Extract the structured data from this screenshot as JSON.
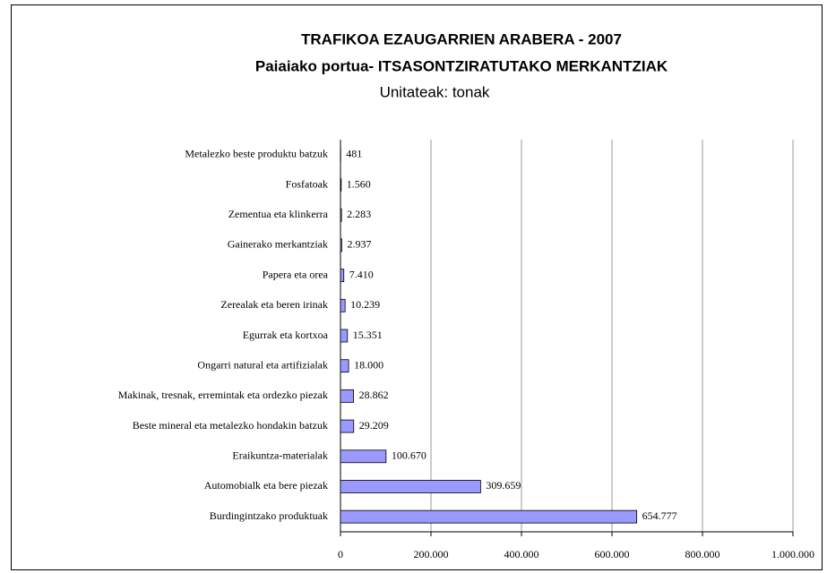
{
  "chart_data": {
    "type": "bar",
    "orientation": "horizontal",
    "title": "TRAFIKOA EZAUGARRIEN ARABERA - 2007",
    "subtitle": "Paiaiako portua- ITSASONTZIRATUTAKO MERKANTZIAK",
    "units": "Unitateak: tonak",
    "categories": [
      "Metalezko beste produktu batzuk",
      "Fosfatoak",
      "Zementua eta klinkerra",
      "Gainerako merkantziak",
      "Papera eta orea",
      "Zerealak eta beren irinak",
      "Egurrak eta kortxoa",
      "Ongarri natural eta artifizialak",
      "Makinak, tresnak, erremintak eta ordezko piezak",
      "Beste mineral eta metalezko hondakin batzuk",
      "Eraikuntza-materialak",
      "Automobialk eta bere piezak",
      "Burdingintzako produktuak"
    ],
    "values": [
      481,
      1560,
      2283,
      2937,
      7410,
      10239,
      15351,
      18000,
      28862,
      29209,
      100670,
      309659,
      654777
    ],
    "value_labels": [
      "481",
      "1.560",
      "2.283",
      "2.937",
      "7.410",
      "10.239",
      "15.351",
      "18.000",
      "28.862",
      "29.209",
      "100.670",
      "309.659",
      "654.777"
    ],
    "color": "#9999ff",
    "xlim": [
      0,
      1000000
    ],
    "xticks": [
      0,
      {
        "value": 200000,
        "label": "200.000"
      },
      {
        "value": 400000,
        "label": "400.000"
      },
      {
        "value": 600000,
        "label": "600.000"
      },
      {
        "value": 800000,
        "label": "800.000"
      },
      {
        "value": 1000000,
        "label": "1.000.000"
      }
    ],
    "grid": true
  }
}
